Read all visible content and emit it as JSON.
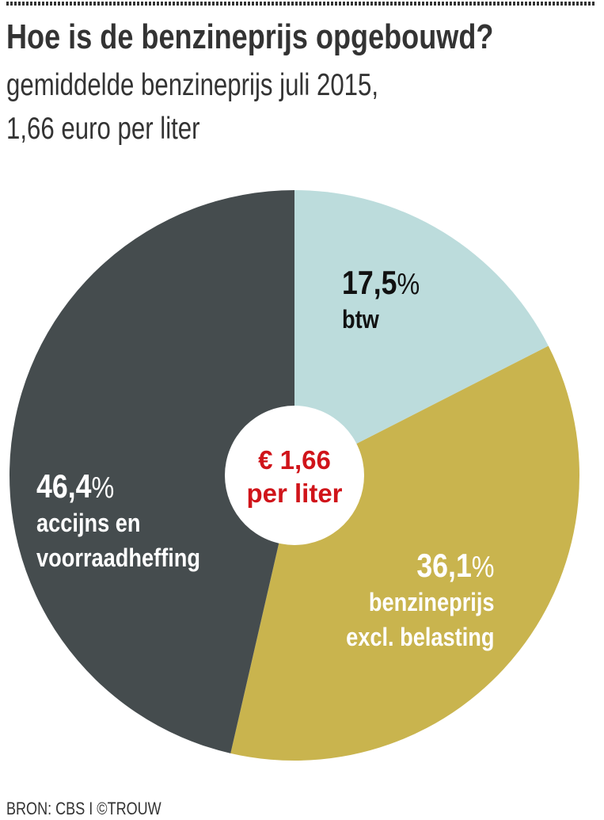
{
  "title": "Hoe is de benzineprijs opgebouwd?",
  "subtitle_line1": "gemiddelde benzineprijs juli 2015,",
  "subtitle_line2": "1,66 euro per liter",
  "center_label": {
    "line1": "€ 1,66",
    "line2": "per liter"
  },
  "source": "BRON: CBS I ©TROUW",
  "chart_data": {
    "type": "pie",
    "title": "Hoe is de benzineprijs opgebouwd?",
    "total": "1,66 euro per liter",
    "slices": [
      {
        "value": 17.5,
        "value_label": "17,5",
        "label_lines": [
          "btw"
        ],
        "color": "#bcdcdc"
      },
      {
        "value": 36.1,
        "value_label": "36,1",
        "label_lines": [
          "benzineprijs",
          "excl. belasting"
        ],
        "color": "#c9b44e"
      },
      {
        "value": 46.4,
        "value_label": "46,4",
        "label_lines": [
          "accijns en",
          "voorraadheffing"
        ],
        "color": "#454c4e"
      }
    ],
    "percent_sign": "%"
  }
}
